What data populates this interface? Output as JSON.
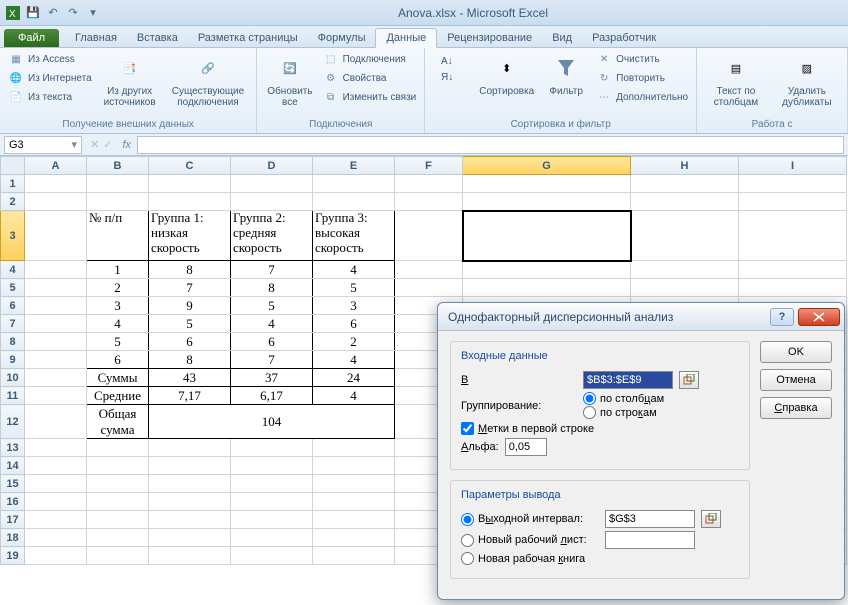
{
  "window_title": "Anova.xlsx - Microsoft Excel",
  "tabs": {
    "file": "Файл",
    "home": "Главная",
    "insert": "Вставка",
    "layout": "Разметка страницы",
    "formulas": "Формулы",
    "data": "Данные",
    "review": "Рецензирование",
    "view": "Вид",
    "dev": "Разработчик"
  },
  "ribbon": {
    "g1": {
      "access": "Из Access",
      "web": "Из Интернета",
      "text": "Из текста",
      "other": "Из других источников",
      "existing": "Существующие подключения",
      "label": "Получение внешних данных"
    },
    "g2": {
      "refresh": "Обновить все",
      "conn": "Подключения",
      "prop": "Свойства",
      "links": "Изменить связи",
      "label": "Подключения"
    },
    "g3": {
      "sort": "Сортировка",
      "filter": "Фильтр",
      "clear": "Очистить",
      "reapply": "Повторить",
      "adv": "Дополнительно",
      "label": "Сортировка и фильтр"
    },
    "g4": {
      "ttc": "Текст по столбцам",
      "dup": "Удалить дубликаты",
      "label": "Работа с"
    }
  },
  "namebox": "G3",
  "columns": [
    "A",
    "B",
    "C",
    "D",
    "E",
    "F",
    "G",
    "H",
    "I"
  ],
  "col_widths": {
    "A": 62,
    "B": 62,
    "C": 82,
    "D": 82,
    "E": 82,
    "F": 68,
    "G": 168,
    "H": 108,
    "I": 108
  },
  "row_heights": {
    "3": 50,
    "12": 34
  },
  "active_col": "G",
  "active_row": 3,
  "table": {
    "h1": "№ п/п",
    "h2": "Группа 1: низкая скорость",
    "h3": "Группа 2: средняя скорость",
    "h4": "Группа 3: высокая скорость",
    "rows": [
      [
        "1",
        "8",
        "7",
        "4"
      ],
      [
        "2",
        "7",
        "8",
        "5"
      ],
      [
        "3",
        "9",
        "5",
        "3"
      ],
      [
        "4",
        "5",
        "4",
        "6"
      ],
      [
        "5",
        "6",
        "6",
        "2"
      ],
      [
        "6",
        "8",
        "7",
        "4"
      ]
    ],
    "sum_label": "Суммы",
    "sums": [
      "43",
      "37",
      "24"
    ],
    "mean_label": "Средние",
    "means": [
      "7,17",
      "6,17",
      "4"
    ],
    "total_label": "Общая сумма",
    "total": "104"
  },
  "dialog": {
    "title": "Однофакторный дисперсионный анализ",
    "ok": "OK",
    "cancel": "Отмена",
    "help": "Справка",
    "fs1": "Входные данные",
    "input_range_label": "Входной интервал:",
    "input_range": "$B$3:$E$9",
    "grouping": "Группирование:",
    "by_cols": "по столбцам",
    "by_rows": "по строкам",
    "labels_first": "Метки в первой строке",
    "alpha_label": "Альфа:",
    "alpha": "0,05",
    "fs2": "Параметры вывода",
    "out_range": "Выходной интервал:",
    "out_range_val": "$G$3",
    "out_sheet": "Новый рабочий лист:",
    "out_book": "Новая рабочая книга"
  }
}
